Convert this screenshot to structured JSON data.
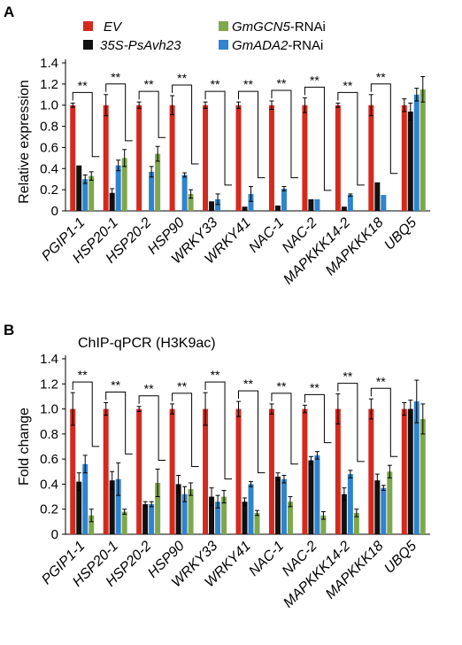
{
  "panels": [
    {
      "label": "A"
    },
    {
      "label": "B"
    }
  ],
  "legend": [
    {
      "name": "EV",
      "color": "#d42a1e",
      "italic": true
    },
    {
      "name": "35S-PsAvh23",
      "color": "#111111",
      "italic": true
    },
    {
      "name": "GmGCN5-RNAi",
      "color": "#7ea84b",
      "italic_part": "GmGCN5",
      "plain_part": "-RNAi"
    },
    {
      "name": "GmADA2-RNAi",
      "color": "#2f83cf",
      "italic_part": "GmADA2",
      "plain_part": "-RNAi"
    }
  ],
  "chart_data": [
    {
      "type": "bar",
      "panel": "A",
      "title": "",
      "ylabel": "Relative expression",
      "ylim": [
        0,
        1.4
      ],
      "yticks": [
        "0",
        "0.2",
        "0.4",
        "0.6",
        "0.8",
        "1.0",
        "1.2",
        "1.4"
      ],
      "categories": [
        "PGIP1-1",
        "HSP20-1",
        "HSP20-2",
        "HSP90",
        "WRKY33",
        "WRKY41",
        "NAC-1",
        "NAC-2",
        "MAPKKK14-2",
        "MAPKKK18",
        "UBQ5"
      ],
      "significance": [
        "**",
        "**",
        "**",
        "**",
        "**",
        "**",
        "**",
        "**",
        "**",
        "**",
        ""
      ],
      "series": [
        {
          "name": "EV",
          "values": [
            1.0,
            1.0,
            1.0,
            1.0,
            1.0,
            1.0,
            1.0,
            1.0,
            1.0,
            1.0,
            1.0
          ],
          "errors": [
            0.02,
            0.1,
            0.03,
            0.09,
            0.03,
            0.03,
            0.04,
            0.07,
            0.02,
            0.1,
            0.06
          ]
        },
        {
          "name": "35S-PsAvh23",
          "values": [
            0.43,
            0.17,
            0.0,
            0.0,
            0.09,
            0.04,
            0.05,
            0.11,
            0.04,
            0.27,
            0.94
          ],
          "errors": [
            0.0,
            0.04,
            0.0,
            0.0,
            0.0,
            0.0,
            0.0,
            0.0,
            0.0,
            0.0,
            0.08
          ]
        },
        {
          "name": "GmADA2-RNAi",
          "values": [
            0.3,
            0.43,
            0.37,
            0.34,
            0.11,
            0.16,
            0.21,
            0.11,
            0.15,
            0.15,
            1.1
          ],
          "errors": [
            0.04,
            0.05,
            0.05,
            0.02,
            0.05,
            0.07,
            0.02,
            0.0,
            0.01,
            0.0,
            0.06
          ]
        },
        {
          "name": "GmGCN5-RNAi",
          "values": [
            0.33,
            0.5,
            0.54,
            0.16,
            0.0,
            0.0,
            0.0,
            0.0,
            0.0,
            0.0,
            1.15
          ],
          "errors": [
            0.04,
            0.08,
            0.07,
            0.04,
            0.0,
            0.0,
            0.0,
            0.0,
            0.0,
            0.0,
            0.12
          ]
        }
      ]
    },
    {
      "type": "bar",
      "panel": "B",
      "title": "ChIP-qPCR (H3K9ac)",
      "ylabel": "Fold change",
      "ylim": [
        0,
        1.4
      ],
      "yticks": [
        "0",
        "0.2",
        "0.4",
        "0.6",
        "0.8",
        "1.0",
        "1.2",
        "1.4"
      ],
      "categories": [
        "PGIP1-1",
        "HSP20-1",
        "HSP20-2",
        "HSP90",
        "WRKY33",
        "WRKY41",
        "NAC-1",
        "NAC-2",
        "MAPKKK14-2",
        "MAPKKK18",
        "UBQ5"
      ],
      "significance": [
        "**",
        "**",
        "**",
        "**",
        "**",
        "**",
        "**",
        "**",
        "**",
        "**",
        ""
      ],
      "series": [
        {
          "name": "EV",
          "values": [
            1.0,
            1.0,
            1.0,
            1.0,
            1.0,
            1.0,
            1.0,
            1.0,
            1.0,
            1.0,
            1.0
          ],
          "errors": [
            0.13,
            0.05,
            0.02,
            0.04,
            0.13,
            0.06,
            0.04,
            0.03,
            0.12,
            0.08,
            0.05
          ]
        },
        {
          "name": "35S-PsAvh23",
          "values": [
            0.42,
            0.43,
            0.24,
            0.4,
            0.3,
            0.26,
            0.46,
            0.59,
            0.32,
            0.43,
            1.0
          ],
          "errors": [
            0.07,
            0.07,
            0.02,
            0.07,
            0.07,
            0.03,
            0.03,
            0.03,
            0.05,
            0.05,
            0.07
          ]
        },
        {
          "name": "GmADA2-RNAi",
          "values": [
            0.56,
            0.44,
            0.24,
            0.32,
            0.26,
            0.4,
            0.44,
            0.63,
            0.48,
            0.37,
            1.06
          ],
          "errors": [
            0.07,
            0.13,
            0.02,
            0.06,
            0.05,
            0.02,
            0.03,
            0.03,
            0.03,
            0.02,
            0.17
          ]
        },
        {
          "name": "GmGCN5-RNAi",
          "values": [
            0.15,
            0.18,
            0.41,
            0.36,
            0.3,
            0.17,
            0.26,
            0.15,
            0.17,
            0.5,
            0.92
          ],
          "errors": [
            0.05,
            0.02,
            0.11,
            0.05,
            0.05,
            0.02,
            0.04,
            0.03,
            0.03,
            0.05,
            0.12
          ]
        }
      ]
    }
  ]
}
